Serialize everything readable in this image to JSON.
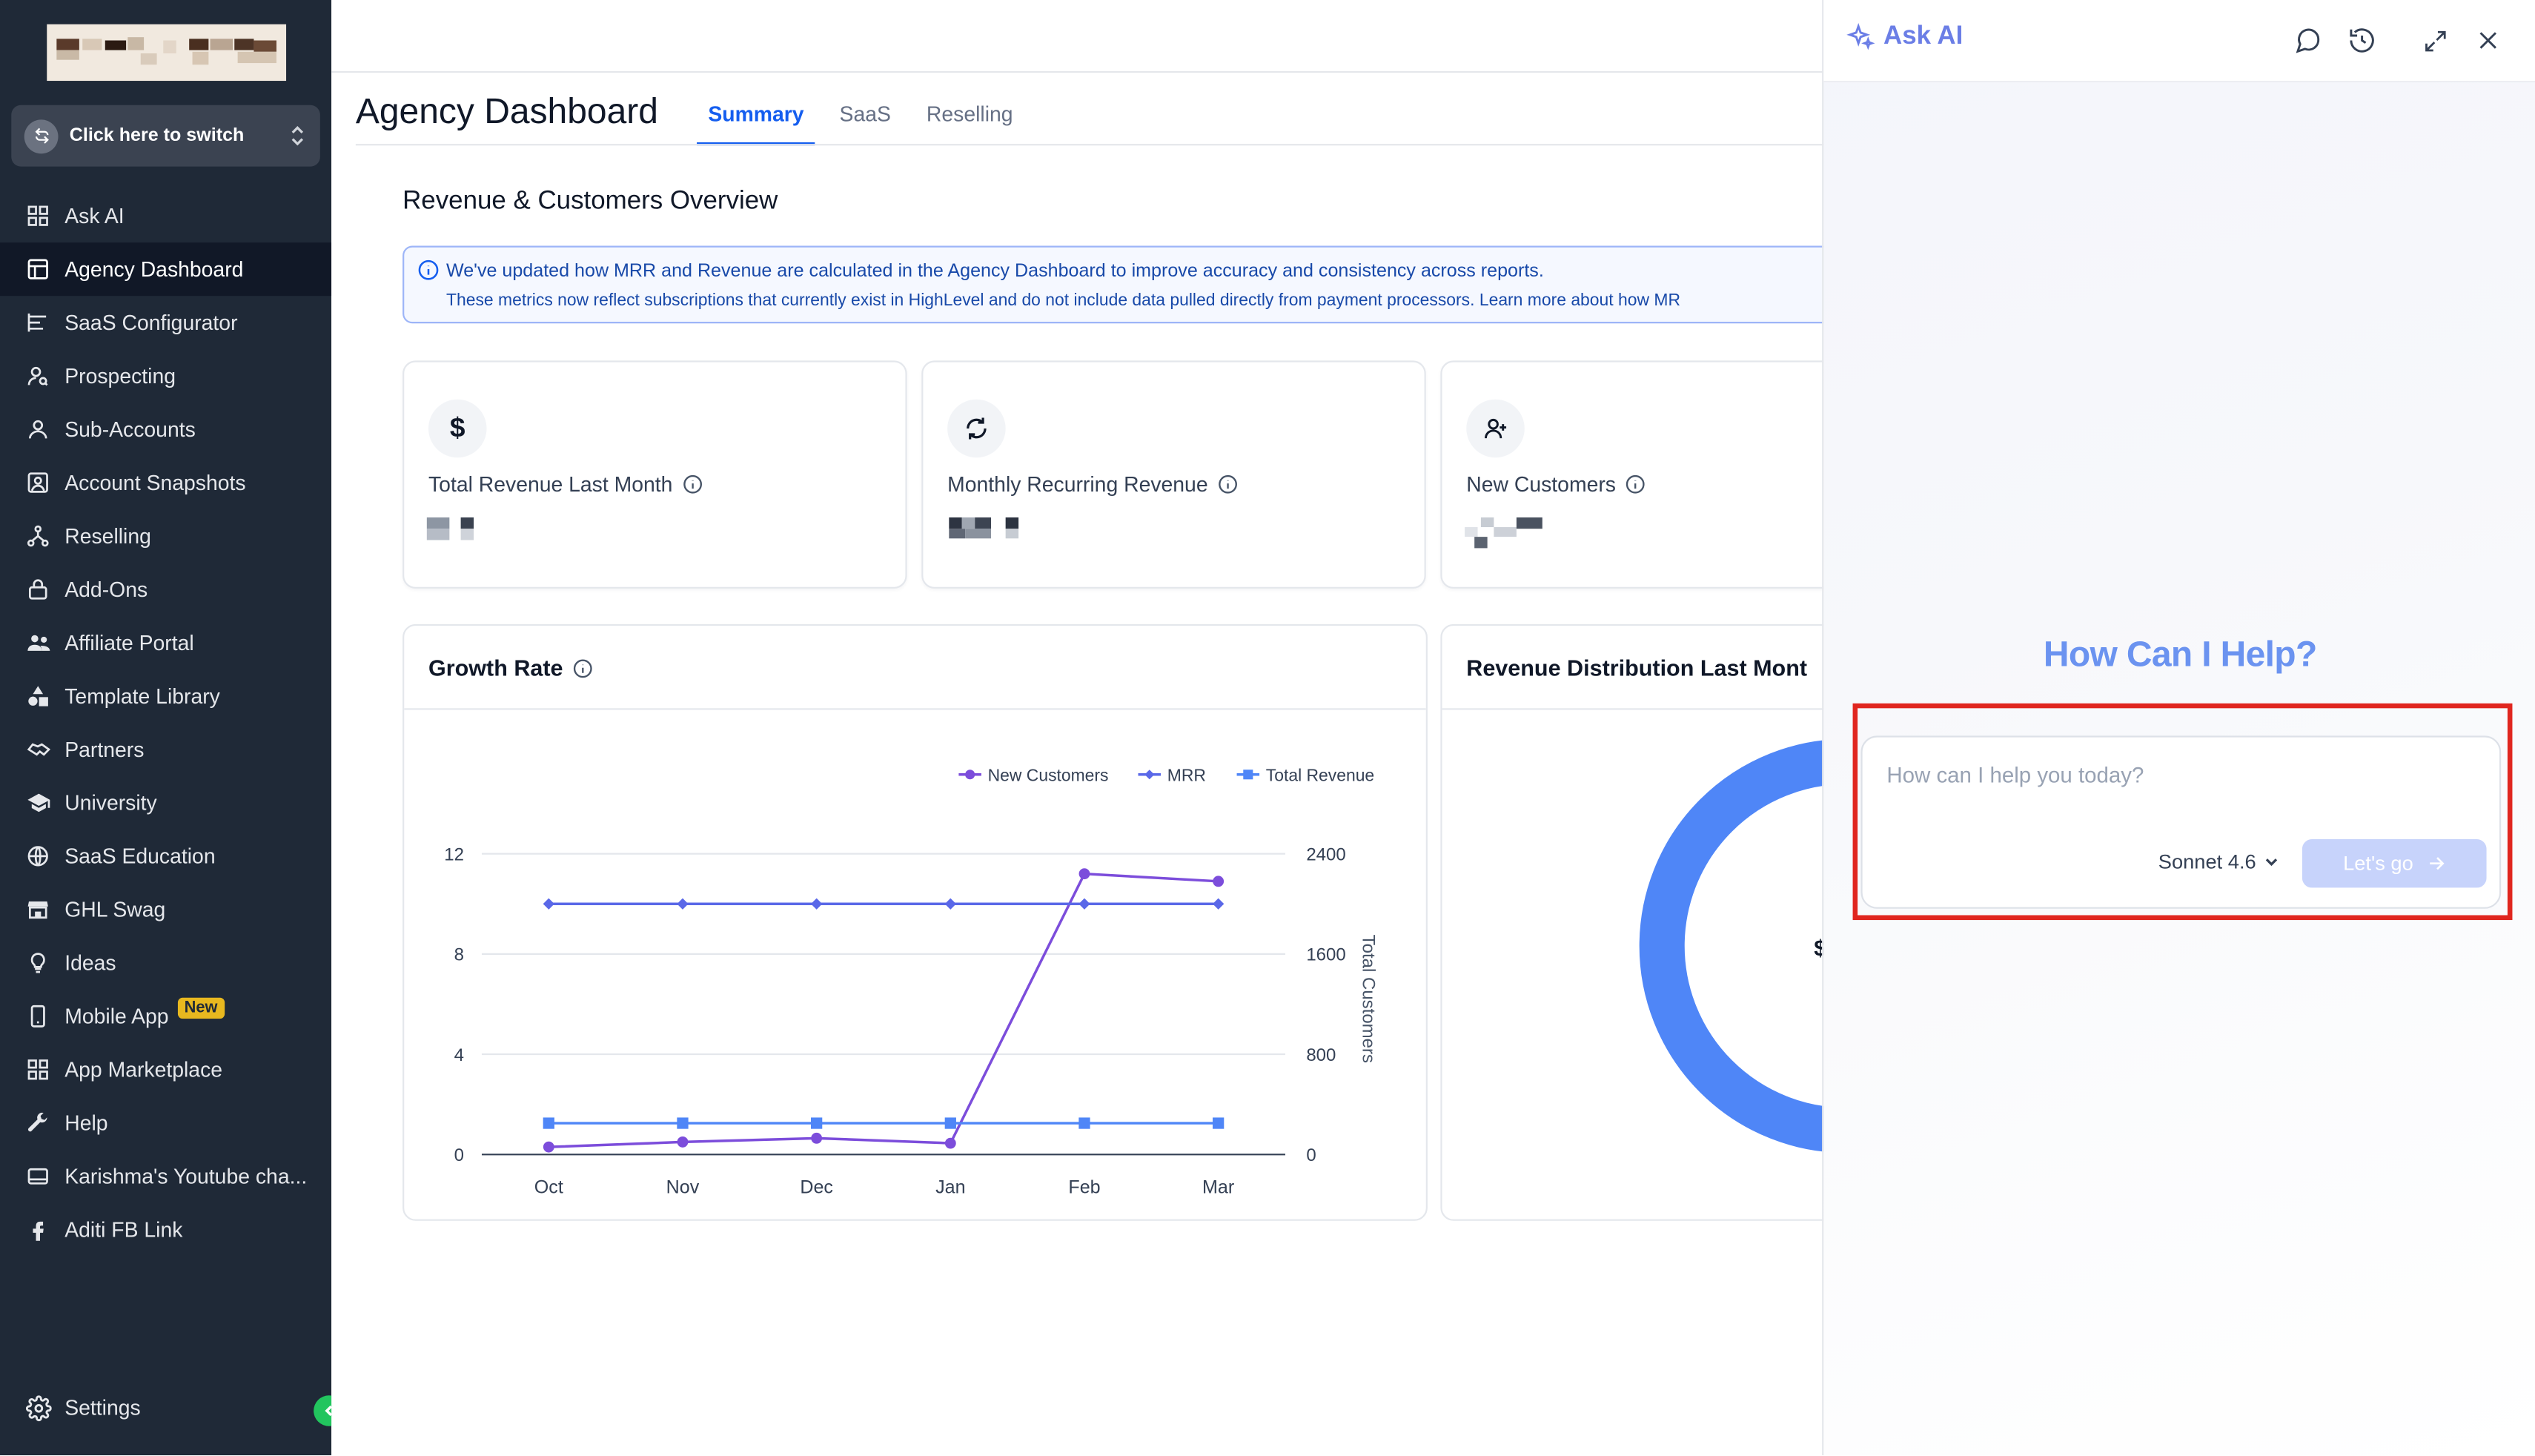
{
  "sidebar": {
    "switcher_label": "Click here to switch",
    "items": [
      {
        "label": "Ask AI",
        "icon": "grid-icon"
      },
      {
        "label": "Agency Dashboard",
        "icon": "dashboard-icon",
        "active": true
      },
      {
        "label": "SaaS Configurator",
        "icon": "sliders-icon"
      },
      {
        "label": "Prospecting",
        "icon": "user-search-icon"
      },
      {
        "label": "Sub-Accounts",
        "icon": "user-icon"
      },
      {
        "label": "Account Snapshots",
        "icon": "snapshot-icon"
      },
      {
        "label": "Reselling",
        "icon": "network-icon"
      },
      {
        "label": "Add-Ons",
        "icon": "lock-icon"
      },
      {
        "label": "Affiliate Portal",
        "icon": "users-icon"
      },
      {
        "label": "Template Library",
        "icon": "shapes-icon"
      },
      {
        "label": "Partners",
        "icon": "handshake-icon"
      },
      {
        "label": "University",
        "icon": "graduation-cap-icon"
      },
      {
        "label": "SaaS Education",
        "icon": "education-icon"
      },
      {
        "label": "GHL Swag",
        "icon": "store-icon"
      },
      {
        "label": "Ideas",
        "icon": "lightbulb-icon"
      },
      {
        "label": "Mobile App",
        "icon": "phone-icon",
        "badge": "New"
      },
      {
        "label": "App Marketplace",
        "icon": "apps-icon"
      },
      {
        "label": "Help",
        "icon": "wrench-icon"
      },
      {
        "label": "Karishma's Youtube cha...",
        "icon": "link-icon"
      },
      {
        "label": "Aditi FB Link",
        "icon": "facebook-icon"
      }
    ],
    "settings_label": "Settings"
  },
  "main": {
    "page_title": "Agency Dashboard",
    "tabs": [
      {
        "label": "Summary",
        "active": true
      },
      {
        "label": "SaaS"
      },
      {
        "label": "Reselling"
      }
    ],
    "section_title": "Revenue & Customers Overview",
    "banner": {
      "line1": "We've updated how MRR and Revenue are calculated in the Agency Dashboard to improve accuracy and consistency across reports.",
      "line2": "These metrics now reflect subscriptions that currently exist in HighLevel and do not include data pulled directly from payment processors. Learn more about how MR"
    },
    "cards": [
      {
        "title": "Total Revenue Last Month",
        "icon": "dollar-icon"
      },
      {
        "title": "Monthly Recurring Revenue",
        "icon": "refresh-icon"
      },
      {
        "title": "New Customers",
        "icon": "user-plus-icon"
      }
    ],
    "growth_title": "Growth Rate",
    "distribution_title": "Revenue Distribution Last Mont",
    "distribution_center_fragment": "$"
  },
  "chart_data": {
    "type": "line",
    "title": "Growth Rate",
    "categories": [
      "Oct",
      "Nov",
      "Dec",
      "Jan",
      "Feb",
      "Mar"
    ],
    "y_left_ticks": [
      "0",
      "4",
      "8",
      "12"
    ],
    "y_left_range": [
      0,
      12
    ],
    "y_right_ticks": [
      "0",
      "800",
      "1600",
      "2400"
    ],
    "y_right_range": [
      0,
      2400
    ],
    "y_right_label": "Total Customers",
    "legend": [
      "New Customers",
      "MRR",
      "Total Revenue"
    ],
    "legend_position": "top-right",
    "grid": true,
    "series": [
      {
        "name": "New Customers",
        "color": "#7c4ddb",
        "marker": "circle",
        "values": [
          0.3,
          0.5,
          0.65,
          0.45,
          11.2,
          10.9
        ]
      },
      {
        "name": "MRR",
        "color": "#5a68e8",
        "marker": "diamond",
        "values": [
          10,
          10,
          10,
          10,
          10,
          10
        ]
      },
      {
        "name": "Total Revenue",
        "color": "#4f86f7",
        "marker": "square",
        "values": [
          1.25,
          1.25,
          1.25,
          1.25,
          1.25,
          1.25
        ]
      }
    ]
  },
  "ai": {
    "title": "Ask AI",
    "heading": "How Can I Help?",
    "placeholder": "How can I help you today?",
    "model": "Sonnet 4.6",
    "go_label": "Let's go"
  },
  "colors": {
    "accent": "#155eef",
    "sidebar_bg": "#1f2937",
    "ai_accent": "#6b93f0",
    "highlight": "#e0261f",
    "donut": "#4f86f7"
  }
}
